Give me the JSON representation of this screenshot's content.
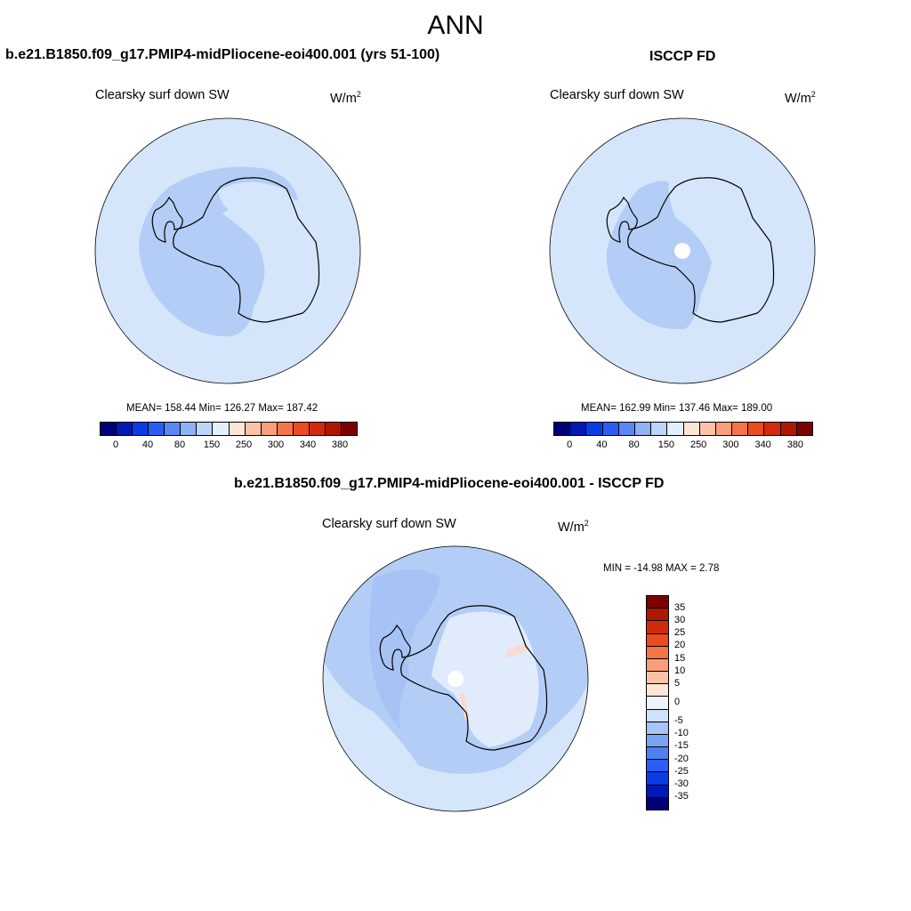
{
  "title": "ANN",
  "panels": [
    {
      "case_title": "b.e21.B1850.f09_g17.PMIP4-midPliocene-eoi400.001 (yrs 51-100)",
      "field_title": "Clearsky surf down SW",
      "units": "W/m",
      "units_sup": "2",
      "stats": "MEAN= 158.44  Min= 126.27  Max= 187.42"
    },
    {
      "case_title": "ISCCP FD",
      "field_title": "Clearsky surf down SW",
      "units": "W/m",
      "units_sup": "2",
      "stats": "MEAN= 162.99  Min= 137.46  Max= 189.00"
    },
    {
      "case_title": "b.e21.B1850.f09_g17.PMIP4-midPliocene-eoi400.001 - ISCCP FD",
      "field_title": "Clearsky surf down SW",
      "units": "W/m",
      "units_sup": "2",
      "stats": "MIN = -14.98 MAX =   2.78"
    }
  ],
  "abs_colorbar": {
    "colors": [
      "#000078",
      "#0019b4",
      "#0a3ce6",
      "#2a5df5",
      "#5a87f2",
      "#8fb2f5",
      "#bdd5fb",
      "#e3effd",
      "#fde6d8",
      "#fbc2a8",
      "#f99e7a",
      "#f57447",
      "#ec4a1f",
      "#d42a0c",
      "#b01700",
      "#7d0000"
    ],
    "tick_labels": [
      "0",
      "40",
      "80",
      "150",
      "250",
      "300",
      "340",
      "380"
    ]
  },
  "diff_colorbar": {
    "colors": [
      "#7d0000",
      "#b01700",
      "#d42a0c",
      "#ec4a1f",
      "#f57447",
      "#f99e7a",
      "#fbc2a8",
      "#fde6d8",
      "#f0f4fa",
      "#cfe1fb",
      "#a6c4f7",
      "#7ba4f3",
      "#4f80f0",
      "#2a5df5",
      "#0a3ce6",
      "#0019b4",
      "#000078"
    ],
    "tick_labels": [
      "35",
      "30",
      "25",
      "20",
      "15",
      "10",
      "5",
      "0",
      "-5",
      "-10",
      "-15",
      "-20",
      "-25",
      "-30",
      "-35"
    ]
  },
  "map_colors": {
    "ocean": "#d5e6fb",
    "shelf": "#b4cdf6",
    "deep": "#a7c2f4",
    "pale": "#e0ecfc",
    "pink": "#f6dcd2"
  }
}
